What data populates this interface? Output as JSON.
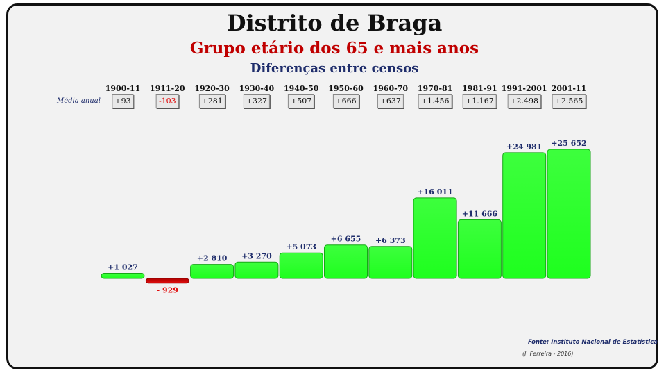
{
  "header": {
    "title": "Distrito de Braga",
    "subtitle": "Grupo etário dos 65 e mais anos",
    "subsubtitle": "Diferenças entre censos"
  },
  "annual_label": "Média anual",
  "annual_values": [
    "+93",
    "-103",
    "+281",
    "+327",
    "+507",
    "+666",
    "+637",
    "+1.456",
    "+1.167",
    "+2.498",
    "+2.565"
  ],
  "footer": {
    "source": "Fonte: Instituto Nacional de Estatística",
    "author": "(J. Ferreira - 2016)"
  },
  "colors": {
    "positive": "#1eff1e",
    "negative": "#e01010",
    "positive_label": "#1f2d6b",
    "negative_label": "#e01010"
  },
  "chart_data": {
    "type": "bar",
    "categories": [
      "1900-11",
      "1911-20",
      "1920-30",
      "1930-40",
      "1940-50",
      "1950-60",
      "1960-70",
      "1970-81",
      "1981-91",
      "1991-2001",
      "2001-11"
    ],
    "values": [
      1027,
      -929,
      2810,
      3270,
      5073,
      6655,
      6373,
      16011,
      11666,
      24981,
      25652
    ],
    "value_labels": [
      "+1 027",
      "- 929",
      "+2 810",
      "+3 270",
      "+5 073",
      "+6 655",
      "+6 373",
      "+16 011",
      "+11 666",
      "+24 981",
      "+25 652"
    ],
    "title": "",
    "xlabel": "",
    "ylabel": "",
    "grid": false
  }
}
